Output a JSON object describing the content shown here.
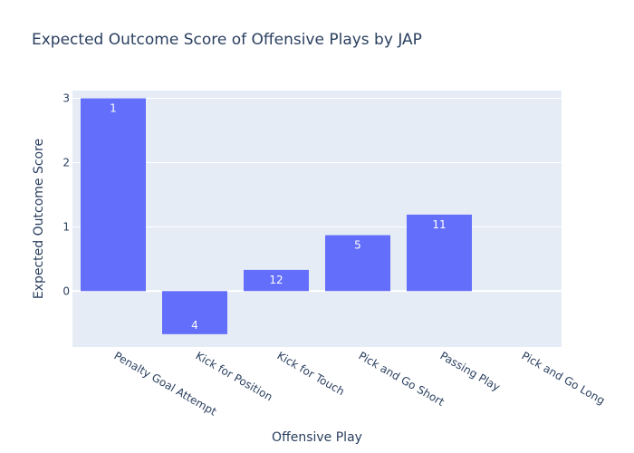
{
  "chart_data": {
    "type": "bar",
    "title": "Expected Outcome Score of Offensive Plays by JAP",
    "xlabel": "Offensive Play",
    "ylabel": "Expected Outcome Score",
    "categories": [
      "Penalty Goal Attempt",
      "Kick for Position",
      "Kick for Touch",
      "Pick and Go Short",
      "Passing Play",
      "Pick and Go Long"
    ],
    "values": [
      3.0,
      -0.67,
      0.33,
      0.87,
      1.19,
      0
    ],
    "bar_labels": [
      "1",
      "4",
      "12",
      "5",
      "11",
      ""
    ],
    "ylim": [
      -0.87,
      3.12
    ],
    "yticks": [
      0,
      1,
      2,
      3
    ],
    "grid": true,
    "colors": {
      "bar": "#636efa",
      "plot_background": "#e5ecf6",
      "grid": "#ffffff",
      "text": "#2a3f5f"
    }
  }
}
